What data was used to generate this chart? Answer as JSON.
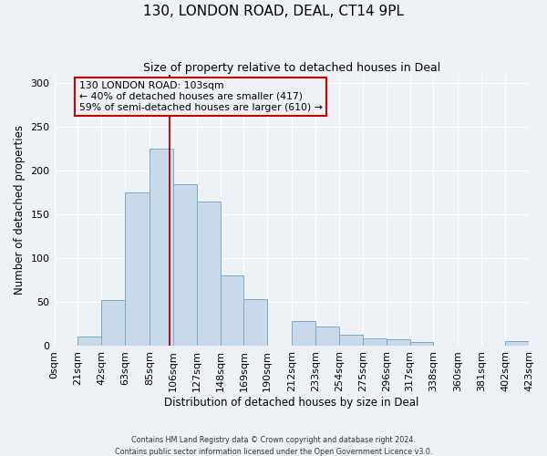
{
  "title": "130, LONDON ROAD, DEAL, CT14 9PL",
  "subtitle": "Size of property relative to detached houses in Deal",
  "xlabel": "Distribution of detached houses by size in Deal",
  "ylabel": "Number of detached properties",
  "footnote1": "Contains HM Land Registry data © Crown copyright and database right 2024.",
  "footnote2": "Contains public sector information licensed under the Open Government Licence v3.0.",
  "bin_edges": [
    0,
    21,
    42,
    63,
    85,
    106,
    127,
    148,
    169,
    190,
    212,
    233,
    254,
    275,
    296,
    317,
    338,
    360,
    381,
    402,
    423
  ],
  "bar_heights": [
    0,
    10,
    52,
    175,
    225,
    185,
    165,
    80,
    53,
    0,
    28,
    22,
    13,
    8,
    7,
    4,
    0,
    0,
    0,
    5
  ],
  "bar_color": "#c9d9ea",
  "bar_edge_color": "#7aaaca",
  "vline_x": 103,
  "vline_color": "#aa0000",
  "annotation_title": "130 LONDON ROAD: 103sqm",
  "annotation_line1": "← 40% of detached houses are smaller (417)",
  "annotation_line2": "59% of semi-detached houses are larger (610) →",
  "annotation_box_facecolor": "#eef2f7",
  "annotation_box_edgecolor": "#cc0000",
  "annotation_text_color": "#000000",
  "ylim": [
    0,
    310
  ],
  "yticks": [
    0,
    50,
    100,
    150,
    200,
    250,
    300
  ],
  "background_color": "#eef2f7",
  "grid_color": "#ffffff",
  "tick_labels": [
    "0sqm",
    "21sqm",
    "42sqm",
    "63sqm",
    "85sqm",
    "106sqm",
    "127sqm",
    "148sqm",
    "169sqm",
    "190sqm",
    "212sqm",
    "233sqm",
    "254sqm",
    "275sqm",
    "296sqm",
    "317sqm",
    "338sqm",
    "360sqm",
    "381sqm",
    "402sqm",
    "423sqm"
  ]
}
